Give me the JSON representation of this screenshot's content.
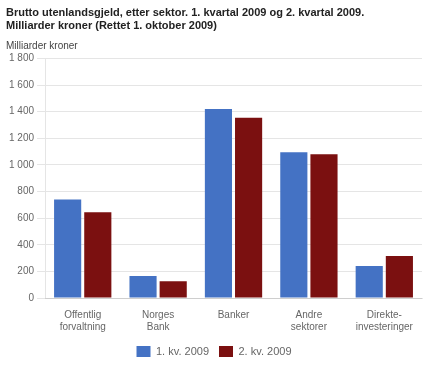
{
  "chart_data": {
    "type": "bar",
    "title": "Brutto utenlandsgjeld, etter sektor. 1. kvartal 2009 og 2. kvartal 2009.\nMilliarder kroner (Rettet 1. oktober 2009)",
    "ylabel": "Milliarder kroner",
    "categories": [
      "Offentlig\nforvaltning",
      "Norges\nBank",
      "Banker",
      "Andre\nsektorer",
      "Direkte-\ninvesteringer"
    ],
    "series": [
      {
        "name": "1. kv. 2009",
        "color": "#4472C4",
        "values": [
          740,
          165,
          1420,
          1095,
          240
        ]
      },
      {
        "name": "2. kv. 2009",
        "color": "#7B1010",
        "values": [
          645,
          125,
          1355,
          1080,
          315
        ]
      }
    ],
    "ylim": [
      0,
      1800
    ],
    "yticks": [
      0,
      200,
      400,
      600,
      800,
      {
        "value": 1000,
        "label": "1 000"
      },
      {
        "value": 1200,
        "label": "1 200"
      },
      {
        "value": 1400,
        "label": "1 400"
      },
      {
        "value": 1600,
        "label": "1 600"
      },
      {
        "value": 1800,
        "label": "1 800"
      }
    ],
    "grid": true,
    "legend": "bottom"
  }
}
